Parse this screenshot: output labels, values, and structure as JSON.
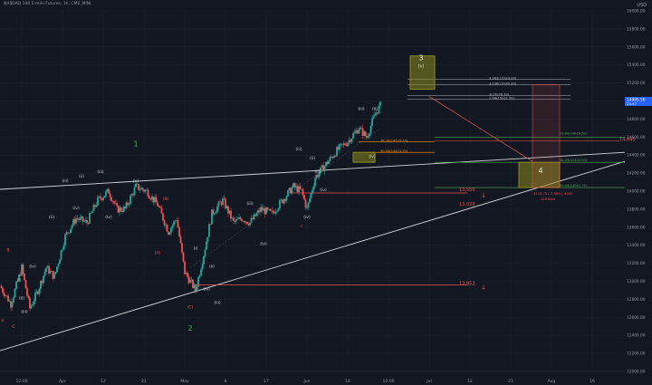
{
  "header": {
    "symbol_title": "NASDAQ 100 E-mini Futures, 1h, CME_MINI",
    "currency": "USD"
  },
  "colors": {
    "background": "#131722",
    "grid": "#1c2030",
    "bull": "#26a69a",
    "bear": "#ef5350",
    "trendline": "#d1d4dc",
    "wave_green": "#4caf50",
    "wave_red": "#ef5350",
    "fib_green": "#4caf50",
    "fib_orange": "#ff9800",
    "fib_gray": "#b2b5be",
    "box_olive": "#8a8a1e",
    "accent_blue": "#2962ff"
  },
  "chart_data": {
    "type": "candlestick",
    "title": "NASDAQ 100 E-mini Futures, 1h, CME_MINI",
    "ylim": [
      12000,
      16000
    ],
    "y_ticks": [
      "12000.00",
      "12200.00",
      "12400.00",
      "12600.00",
      "12800.00",
      "13000.00",
      "13200.00",
      "13400.00",
      "13600.00",
      "13800.00",
      "14000.00",
      "14200.00",
      "14400.00",
      "14600.00",
      "14800.00",
      "15000.00",
      "15200.00",
      "15400.00",
      "15600.00",
      "15800.00",
      "16000.00"
    ],
    "x_ticks": [
      "12:00",
      "Apr",
      "12",
      "21",
      "May",
      "8",
      "17",
      "Jun",
      "14",
      "12:00",
      "Jul",
      "12",
      "21",
      "Aug",
      "16"
    ],
    "price_path": [
      {
        "t": 0,
        "p": 12950
      },
      {
        "t": 4,
        "p": 12750
      },
      {
        "t": 8,
        "p": 13150
      },
      {
        "t": 11,
        "p": 12700
      },
      {
        "t": 14,
        "p": 12900
      },
      {
        "t": 17,
        "p": 13150
      },
      {
        "t": 20,
        "p": 13050
      },
      {
        "t": 24,
        "p": 13500
      },
      {
        "t": 28,
        "p": 13700
      },
      {
        "t": 32,
        "p": 13650
      },
      {
        "t": 36,
        "p": 13900
      },
      {
        "t": 40,
        "p": 14000
      },
      {
        "t": 43,
        "p": 13800
      },
      {
        "t": 46,
        "p": 13800
      },
      {
        "t": 50,
        "p": 14050
      },
      {
        "t": 54,
        "p": 14000
      },
      {
        "t": 58,
        "p": 13850
      },
      {
        "t": 62,
        "p": 13550
      },
      {
        "t": 65,
        "p": 13700
      },
      {
        "t": 68,
        "p": 13100
      },
      {
        "t": 72,
        "p": 12900
      },
      {
        "t": 75,
        "p": 13300
      },
      {
        "t": 78,
        "p": 13750
      },
      {
        "t": 82,
        "p": 13900
      },
      {
        "t": 86,
        "p": 13650
      },
      {
        "t": 89,
        "p": 13700
      },
      {
        "t": 92,
        "p": 13650
      },
      {
        "t": 96,
        "p": 13800
      },
      {
        "t": 100,
        "p": 13750
      },
      {
        "t": 104,
        "p": 13900
      },
      {
        "t": 108,
        "p": 14050
      },
      {
        "t": 111,
        "p": 14000
      },
      {
        "t": 113,
        "p": 13800
      },
      {
        "t": 116,
        "p": 14150
      },
      {
        "t": 120,
        "p": 14300
      },
      {
        "t": 124,
        "p": 14450
      },
      {
        "t": 128,
        "p": 14550
      },
      {
        "t": 132,
        "p": 14700
      },
      {
        "t": 135,
        "p": 14600
      },
      {
        "t": 138,
        "p": 14850
      },
      {
        "t": 140,
        "p": 14950
      }
    ],
    "current_price": "14995.50",
    "current_label_sub": "25:47",
    "wave_labels": [
      {
        "text": "A",
        "t": 1,
        "p": 12550,
        "color": "red"
      },
      {
        "text": "B",
        "t": 3,
        "p": 13330,
        "color": "red"
      },
      {
        "text": "C",
        "t": 5,
        "p": 12480,
        "color": "red"
      },
      {
        "text": "(i)",
        "t": 7,
        "p": 13000,
        "color": "green"
      },
      {
        "text": "(ii)",
        "t": 8,
        "p": 12800,
        "color": "green"
      },
      {
        "text": "(iii)",
        "t": 9,
        "p": 12650,
        "color": "green"
      },
      {
        "text": "(iv)",
        "t": 12,
        "p": 13150,
        "color": "green"
      },
      {
        "text": "(ii)",
        "t": 19,
        "p": 13700,
        "color": "green"
      },
      {
        "text": "(iii)",
        "t": 24,
        "p": 14100,
        "color": "green"
      },
      {
        "text": "(iv)",
        "t": 28,
        "p": 13800,
        "color": "green"
      },
      {
        "text": "(ii)",
        "t": 30,
        "p": 14150,
        "color": "green"
      },
      {
        "text": "(iii)",
        "t": 37,
        "p": 14200,
        "color": "green"
      },
      {
        "text": "(iv)",
        "t": 40,
        "p": 13700,
        "color": "green"
      },
      {
        "text": "(v)",
        "t": 50,
        "p": 14100,
        "color": "green"
      },
      {
        "text": "1",
        "t": 50,
        "p": 14500,
        "color": "green"
      },
      {
        "text": "(B)",
        "t": 61,
        "p": 13900,
        "color": "red"
      },
      {
        "text": "(A)",
        "t": 58,
        "p": 13300,
        "color": "red"
      },
      {
        "text": "(C)",
        "t": 70,
        "p": 12700,
        "color": "red"
      },
      {
        "text": "2",
        "t": 70,
        "p": 12450,
        "color": "green"
      },
      {
        "text": "(i)",
        "t": 72,
        "p": 13350,
        "color": "green"
      },
      {
        "text": "(ii)",
        "t": 78,
        "p": 13150,
        "color": "green"
      },
      {
        "text": "(iii)",
        "t": 80,
        "p": 12750,
        "color": "green"
      },
      {
        "text": "(iv)",
        "t": 76,
        "p": 12900,
        "color": "green"
      },
      {
        "text": "(iii)",
        "t": 92,
        "p": 13850,
        "color": "green"
      },
      {
        "text": "(iv)",
        "t": 97,
        "p": 13400,
        "color": "green"
      },
      {
        "text": "(iii)",
        "t": 110,
        "p": 14450,
        "color": "green"
      },
      {
        "text": "(iv)",
        "t": 113,
        "p": 13700,
        "color": "green"
      },
      {
        "text": "(ii)",
        "t": 115,
        "p": 14350,
        "color": "green"
      },
      {
        "text": "(iii)",
        "t": 117,
        "p": 14200,
        "color": "green"
      },
      {
        "text": "(iv)",
        "t": 119,
        "p": 14000,
        "color": "green"
      },
      {
        "text": "c",
        "t": 111,
        "p": 13600,
        "color": "red"
      },
      {
        "text": "(iii)",
        "t": 133,
        "p": 14900,
        "color": "green"
      },
      {
        "text": "(iv)",
        "t": 137,
        "p": 14370,
        "color": "green"
      },
      {
        "text": "(ii)",
        "t": 138,
        "p": 14900,
        "color": "green"
      }
    ],
    "box_labels": [
      {
        "text": "3",
        "t": 155,
        "p": 15450
      },
      {
        "text": "(v)",
        "t": 155,
        "p": 15370
      },
      {
        "text": "4",
        "t": 199,
        "p": 14200
      }
    ],
    "fib_texts": [
      {
        "text": "3.382(15320.00)",
        "t": 180,
        "p": 15240,
        "color": "gray"
      },
      {
        "text": "3.236(15185.00)",
        "t": 180,
        "p": 15180,
        "color": "gray"
      },
      {
        "text": "3(15076.50)",
        "t": 180,
        "p": 15060,
        "color": "gray"
      },
      {
        "text": "2.66(15031.50)",
        "t": 180,
        "p": 15020,
        "color": "gray"
      },
      {
        "text": "38.20(14525.75)",
        "t": 140,
        "p": 14550,
        "color": "orange"
      },
      {
        "text": "50.00(14423.35)",
        "t": 140,
        "p": 14430,
        "color": "orange"
      },
      {
        "text": "23.60(14619.50)",
        "t": 206,
        "p": 14630,
        "color": "green"
      },
      {
        "text": "38.20(14320.50)",
        "t": 206,
        "p": 14330,
        "color": "green"
      },
      {
        "text": "50.00(14041.75)",
        "t": 206,
        "p": 14050,
        "color": "green"
      },
      {
        "text": "-1115.75 (-7.36%) -4463",
        "t": 196,
        "p": 13960,
        "color": "red"
      },
      {
        "text": "128 Bars",
        "t": 199,
        "p": 13900,
        "color": "red"
      }
    ],
    "level_labels": [
      {
        "text": "14,640",
        "t": 228,
        "p": 14560,
        "color": "red"
      },
      {
        "text": "13,550",
        "t": 169,
        "p": 14000,
        "color": "red"
      },
      {
        "text": "13,020",
        "t": 169,
        "p": 13840,
        "color": "red"
      },
      {
        "text": "12,952",
        "t": 169,
        "p": 12960,
        "color": "red"
      }
    ]
  }
}
